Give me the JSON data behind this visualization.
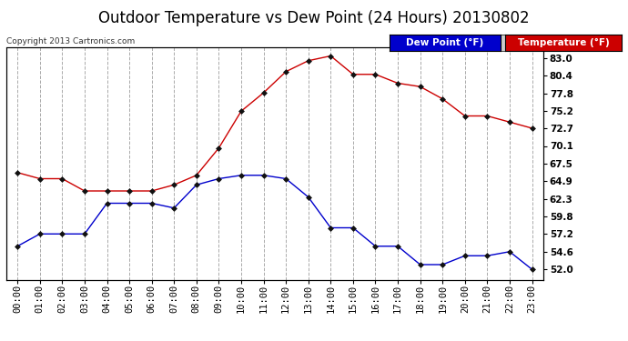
{
  "title": "Outdoor Temperature vs Dew Point (24 Hours) 20130802",
  "copyright": "Copyright 2013 Cartronics.com",
  "legend_dew": "Dew Point (°F)",
  "legend_temp": "Temperature (°F)",
  "hours": [
    "00:00",
    "01:00",
    "02:00",
    "03:00",
    "04:00",
    "05:00",
    "06:00",
    "07:00",
    "08:00",
    "09:00",
    "10:00",
    "11:00",
    "12:00",
    "13:00",
    "14:00",
    "15:00",
    "16:00",
    "17:00",
    "18:00",
    "19:00",
    "20:00",
    "21:00",
    "22:00",
    "23:00"
  ],
  "temperature": [
    66.2,
    65.3,
    65.3,
    63.5,
    63.5,
    63.5,
    63.5,
    64.4,
    65.8,
    69.8,
    75.2,
    77.9,
    81.0,
    82.6,
    83.3,
    80.6,
    80.6,
    79.3,
    78.8,
    77.0,
    74.5,
    74.5,
    73.6,
    72.7
  ],
  "dew_point": [
    55.4,
    57.2,
    57.2,
    57.2,
    61.7,
    61.7,
    61.7,
    61.0,
    64.4,
    65.3,
    65.8,
    65.8,
    65.3,
    62.6,
    58.1,
    58.1,
    55.4,
    55.4,
    52.7,
    52.7,
    54.0,
    54.0,
    54.6,
    52.0
  ],
  "temp_color": "#cc0000",
  "dew_color": "#0000cc",
  "bg_color": "#ffffff",
  "plot_bg_color": "#ffffff",
  "grid_color": "#aaaaaa",
  "marker": "D",
  "marker_size": 3,
  "marker_color": "#111111",
  "y_ticks": [
    52.0,
    54.6,
    57.2,
    59.8,
    62.3,
    64.9,
    67.5,
    70.1,
    72.7,
    75.2,
    77.8,
    80.4,
    83.0
  ],
  "ylim_min": 50.5,
  "ylim_max": 84.5,
  "title_fontsize": 12,
  "axis_fontsize": 7.5,
  "copyright_fontsize": 6.5,
  "legend_fontsize": 7.5
}
